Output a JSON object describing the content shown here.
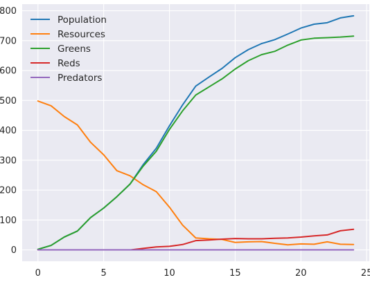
{
  "chart_data": {
    "type": "line",
    "title": "",
    "xlabel": "",
    "ylabel": "",
    "xlim": [
      -1.2,
      25.2
    ],
    "ylim": [
      -38,
      822
    ],
    "xticks": [
      0,
      5,
      10,
      15,
      20,
      25
    ],
    "yticks": [
      0,
      100,
      200,
      300,
      400,
      500,
      600,
      700,
      800
    ],
    "grid": true,
    "legend_position": "top-left",
    "background": "#eaeaf2",
    "x": [
      0,
      1,
      2,
      3,
      4,
      5,
      6,
      7,
      8,
      9,
      10,
      11,
      12,
      13,
      14,
      15,
      16,
      17,
      18,
      19,
      20,
      21,
      22,
      23,
      24
    ],
    "series": [
      {
        "name": "Population",
        "color": "#1f77b4",
        "values": [
          2,
          15,
          43,
          63,
          108,
          140,
          178,
          220,
          285,
          340,
          415,
          485,
          548,
          578,
          607,
          643,
          670,
          690,
          703,
          722,
          742,
          755,
          760,
          776,
          783
        ]
      },
      {
        "name": "Resources",
        "color": "#ff7f0e",
        "values": [
          498,
          482,
          446,
          418,
          360,
          318,
          265,
          248,
          218,
          195,
          143,
          83,
          40,
          37,
          35,
          25,
          27,
          28,
          22,
          17,
          20,
          19,
          27,
          19,
          18
        ]
      },
      {
        "name": "Greens",
        "color": "#2ca02c",
        "values": [
          2,
          15,
          43,
          63,
          108,
          140,
          178,
          220,
          280,
          330,
          403,
          465,
          518,
          545,
          572,
          605,
          633,
          653,
          664,
          685,
          702,
          708,
          710,
          712,
          715
        ]
      },
      {
        "name": "Reds",
        "color": "#d62728",
        "values": [
          0,
          0,
          0,
          0,
          0,
          0,
          0,
          0,
          5,
          10,
          12,
          18,
          31,
          33,
          36,
          38,
          37,
          37,
          39,
          40,
          43,
          47,
          50,
          64,
          69
        ]
      },
      {
        "name": "Predators",
        "color": "#9467bd",
        "values": [
          0,
          0,
          0,
          0,
          0,
          0,
          0,
          0,
          0,
          0,
          0,
          0,
          0,
          0,
          0,
          0,
          0,
          0,
          0,
          0,
          0,
          0,
          0,
          0,
          0
        ]
      }
    ]
  }
}
